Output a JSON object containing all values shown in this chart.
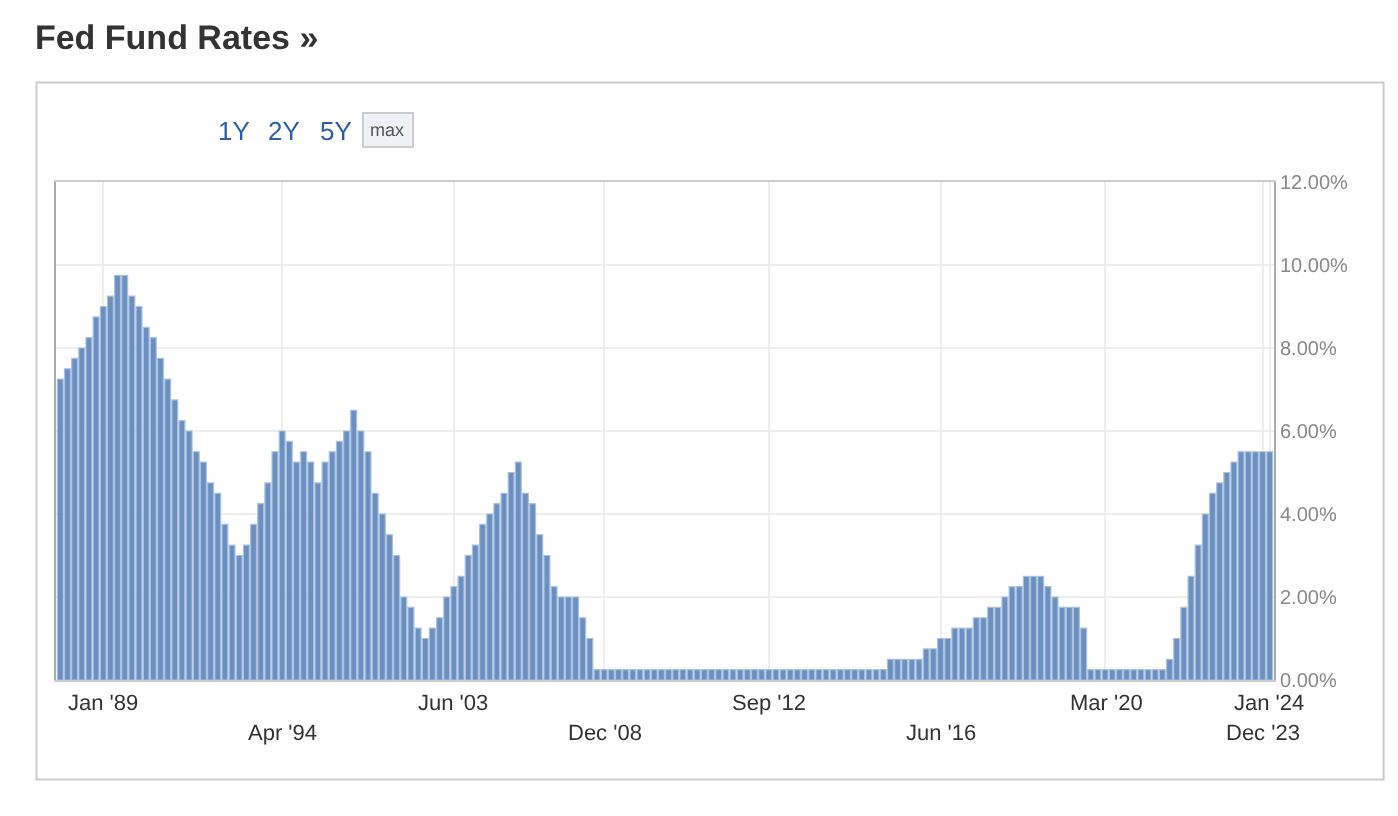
{
  "chart_data": {
    "type": "bar",
    "title": "Fed Fund Rates »",
    "annotations": [
      "1Y",
      "2Y",
      "5Y",
      "max"
    ],
    "categories": [
      null,
      null,
      null,
      null,
      null,
      null,
      "Jan '89",
      null,
      null,
      null,
      null,
      null,
      null,
      null,
      null,
      null,
      null,
      null,
      null,
      null,
      null,
      null,
      null,
      null,
      null,
      null,
      null,
      null,
      null,
      null,
      null,
      "Apr '94",
      null,
      null,
      null,
      null,
      null,
      null,
      null,
      null,
      null,
      null,
      null,
      null,
      null,
      null,
      null,
      null,
      null,
      null,
      null,
      null,
      null,
      null,
      null,
      "Jun '03",
      null,
      null,
      null,
      null,
      null,
      null,
      null,
      null,
      null,
      null,
      null,
      null,
      null,
      null,
      null,
      null,
      null,
      null,
      null,
      null,
      "Dec '08",
      null,
      null,
      null,
      null,
      null,
      null,
      null,
      null,
      null,
      null,
      null,
      null,
      null,
      null,
      null,
      null,
      null,
      null,
      null,
      null,
      null,
      null,
      "Sep '12",
      null,
      null,
      null,
      null,
      null,
      null,
      null,
      null,
      null,
      null,
      null,
      null,
      null,
      null,
      null,
      null,
      null,
      null,
      null,
      null,
      null,
      null,
      null,
      "Jun '16",
      null,
      null,
      null,
      null,
      null,
      null,
      null,
      null,
      null,
      null,
      null,
      null,
      null,
      null,
      null,
      null,
      null,
      null,
      null,
      null,
      null,
      null,
      "Mar '20",
      null,
      null,
      null,
      null,
      null,
      null,
      null,
      null,
      null,
      null,
      null,
      null,
      null,
      null,
      null,
      null,
      null,
      null,
      null,
      null,
      null,
      "Dec '23",
      "Jan '24"
    ],
    "values": [
      7.25,
      7.5,
      7.75,
      8.0,
      8.25,
      8.75,
      9.0,
      9.25,
      9.75,
      9.75,
      9.25,
      9.0,
      8.5,
      8.25,
      7.75,
      7.25,
      6.75,
      6.25,
      6.0,
      5.5,
      5.25,
      4.75,
      4.5,
      3.75,
      3.25,
      3.0,
      3.25,
      3.75,
      4.25,
      4.75,
      5.5,
      6.0,
      5.75,
      5.25,
      5.5,
      5.25,
      4.75,
      5.25,
      5.5,
      5.75,
      6.0,
      6.5,
      6.0,
      5.5,
      4.5,
      4.0,
      3.5,
      3.0,
      2.0,
      1.75,
      1.25,
      1.0,
      1.25,
      1.5,
      2.0,
      2.25,
      2.5,
      3.0,
      3.25,
      3.75,
      4.0,
      4.25,
      4.5,
      5.0,
      5.25,
      4.5,
      4.25,
      3.5,
      3.0,
      2.25,
      2.0,
      2.0,
      2.0,
      1.5,
      1.0,
      0.25,
      0.25,
      0.25,
      0.25,
      0.25,
      0.25,
      0.25,
      0.25,
      0.25,
      0.25,
      0.25,
      0.25,
      0.25,
      0.25,
      0.25,
      0.25,
      0.25,
      0.25,
      0.25,
      0.25,
      0.25,
      0.25,
      0.25,
      0.25,
      0.25,
      0.25,
      0.25,
      0.25,
      0.25,
      0.25,
      0.25,
      0.25,
      0.25,
      0.25,
      0.25,
      0.25,
      0.25,
      0.25,
      0.25,
      0.25,
      0.25,
      0.5,
      0.5,
      0.5,
      0.5,
      0.5,
      0.75,
      0.75,
      1.0,
      1.0,
      1.25,
      1.25,
      1.25,
      1.5,
      1.5,
      1.75,
      1.75,
      2.0,
      2.25,
      2.25,
      2.5,
      2.5,
      2.5,
      2.25,
      2.0,
      1.75,
      1.75,
      1.75,
      1.25,
      0.25,
      0.25,
      0.25,
      0.25,
      0.25,
      0.25,
      0.25,
      0.25,
      0.25,
      0.25,
      0.25,
      0.5,
      1.0,
      1.75,
      2.5,
      3.25,
      4.0,
      4.5,
      4.75,
      5.0,
      5.25,
      5.5,
      5.5,
      5.5,
      5.5,
      5.5
    ],
    "color": "#6a8fc0",
    "ylim": [
      0,
      12
    ],
    "yticks": [
      {
        "value": 0,
        "label": "0.00%"
      },
      {
        "value": 2,
        "label": "2.00%"
      },
      {
        "value": 4,
        "label": "4.00%"
      },
      {
        "value": 6,
        "label": "6.00%"
      },
      {
        "value": 8,
        "label": "8.00%"
      },
      {
        "value": 10,
        "label": "10.00%"
      },
      {
        "value": 12,
        "label": "12.00%"
      }
    ],
    "grid": true
  }
}
